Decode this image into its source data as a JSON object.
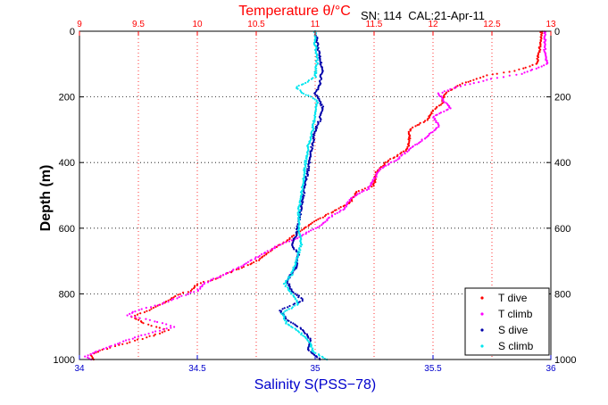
{
  "chart_data": {
    "type": "scatter",
    "title": "SN: 114  CAL:21-Apr-11",
    "top_axis_label": "Temperature θ/°C",
    "bottom_axis_label": "Salinity S(PSS−78)",
    "ylabel": "Depth (m)",
    "y_reversed": true,
    "ylim": [
      0,
      1000
    ],
    "y_ticks": [
      "0",
      "200",
      "400",
      "600",
      "800",
      "1000"
    ],
    "temperature_lim": [
      9,
      13
    ],
    "temperature_ticks": [
      "9",
      "9.5",
      "10",
      "10.5",
      "11",
      "11.5",
      "12",
      "12.5",
      "13"
    ],
    "salinity_lim": [
      34,
      36
    ],
    "salinity_ticks": [
      "34",
      "34.5",
      "35",
      "35.5",
      "36"
    ],
    "grid": true,
    "legend_position": "bottom-right",
    "colors": {
      "temperature_axis": "#ff0000",
      "salinity_axis": "#0000cc",
      "t_dive": "#ff0000",
      "t_climb": "#ff00ff",
      "s_dive": "#0000aa",
      "s_climb": "#00e5ee"
    },
    "series": [
      {
        "name": "T dive",
        "axis": "temperature",
        "marker": "dot",
        "points": [
          [
            12.92,
            0
          ],
          [
            12.92,
            30
          ],
          [
            12.9,
            60
          ],
          [
            12.88,
            100
          ],
          [
            12.7,
            120
          ],
          [
            12.45,
            135
          ],
          [
            12.25,
            160
          ],
          [
            12.1,
            190
          ],
          [
            12.08,
            220
          ],
          [
            12.0,
            240
          ],
          [
            11.95,
            270
          ],
          [
            11.8,
            300
          ],
          [
            11.8,
            340
          ],
          [
            11.78,
            360
          ],
          [
            11.6,
            400
          ],
          [
            11.52,
            430
          ],
          [
            11.5,
            470
          ],
          [
            11.35,
            490
          ],
          [
            11.3,
            520
          ],
          [
            11.2,
            540
          ],
          [
            11.1,
            560
          ],
          [
            10.95,
            590
          ],
          [
            10.85,
            615
          ],
          [
            10.75,
            640
          ],
          [
            10.65,
            660
          ],
          [
            10.55,
            690
          ],
          [
            10.45,
            710
          ],
          [
            10.3,
            730
          ],
          [
            10.15,
            755
          ],
          [
            10.0,
            770
          ],
          [
            9.95,
            790
          ],
          [
            9.85,
            800
          ],
          [
            9.75,
            820
          ],
          [
            9.6,
            850
          ],
          [
            9.45,
            870
          ],
          [
            9.55,
            890
          ],
          [
            9.75,
            910
          ],
          [
            9.6,
            930
          ],
          [
            9.4,
            950
          ],
          [
            9.2,
            970
          ],
          [
            9.1,
            985
          ],
          [
            9.12,
            1000
          ]
        ]
      },
      {
        "name": "T climb",
        "axis": "temperature",
        "marker": "dot",
        "points": [
          [
            12.95,
            0
          ],
          [
            12.95,
            30
          ],
          [
            12.95,
            60
          ],
          [
            12.97,
            100
          ],
          [
            12.75,
            130
          ],
          [
            12.5,
            145
          ],
          [
            12.2,
            170
          ],
          [
            12.05,
            190
          ],
          [
            12.1,
            215
          ],
          [
            12.15,
            235
          ],
          [
            12.0,
            260
          ],
          [
            12.05,
            290
          ],
          [
            11.95,
            320
          ],
          [
            11.8,
            360
          ],
          [
            11.7,
            390
          ],
          [
            11.55,
            420
          ],
          [
            11.5,
            450
          ],
          [
            11.45,
            480
          ],
          [
            11.3,
            510
          ],
          [
            11.25,
            540
          ],
          [
            11.15,
            560
          ],
          [
            11.05,
            590
          ],
          [
            10.95,
            610
          ],
          [
            10.85,
            630
          ],
          [
            10.7,
            650
          ],
          [
            10.6,
            670
          ],
          [
            10.45,
            700
          ],
          [
            10.35,
            720
          ],
          [
            10.2,
            745
          ],
          [
            10.05,
            770
          ],
          [
            10.0,
            790
          ],
          [
            9.85,
            810
          ],
          [
            9.7,
            830
          ],
          [
            9.5,
            850
          ],
          [
            9.4,
            865
          ],
          [
            9.6,
            880
          ],
          [
            9.8,
            900
          ],
          [
            9.65,
            915
          ],
          [
            9.5,
            930
          ],
          [
            9.3,
            955
          ],
          [
            9.15,
            975
          ],
          [
            9.05,
            990
          ],
          [
            9.1,
            1000
          ]
        ]
      },
      {
        "name": "S dive",
        "axis": "salinity",
        "marker": "dot",
        "points": [
          [
            35.0,
            0
          ],
          [
            35.01,
            40
          ],
          [
            35.02,
            80
          ],
          [
            35.03,
            120
          ],
          [
            35.02,
            160
          ],
          [
            35.0,
            190
          ],
          [
            35.03,
            230
          ],
          [
            35.02,
            270
          ],
          [
            35.0,
            300
          ],
          [
            34.99,
            340
          ],
          [
            34.98,
            380
          ],
          [
            34.97,
            420
          ],
          [
            34.96,
            460
          ],
          [
            34.95,
            500
          ],
          [
            34.94,
            540
          ],
          [
            34.93,
            580
          ],
          [
            34.92,
            620
          ],
          [
            34.9,
            650
          ],
          [
            34.93,
            680
          ],
          [
            34.92,
            720
          ],
          [
            34.88,
            760
          ],
          [
            34.9,
            790
          ],
          [
            34.95,
            820
          ],
          [
            34.85,
            850
          ],
          [
            34.88,
            880
          ],
          [
            34.95,
            910
          ],
          [
            34.98,
            940
          ],
          [
            34.97,
            970
          ],
          [
            35.02,
            1000
          ]
        ]
      },
      {
        "name": "S climb",
        "axis": "salinity",
        "marker": "dot",
        "points": [
          [
            35.0,
            0
          ],
          [
            35.0,
            40
          ],
          [
            35.01,
            80
          ],
          [
            35.0,
            140
          ],
          [
            34.95,
            160
          ],
          [
            34.92,
            170
          ],
          [
            34.95,
            190
          ],
          [
            35.01,
            210
          ],
          [
            35.0,
            250
          ],
          [
            34.99,
            300
          ],
          [
            34.97,
            350
          ],
          [
            34.96,
            400
          ],
          [
            34.95,
            450
          ],
          [
            34.94,
            500
          ],
          [
            34.93,
            550
          ],
          [
            34.93,
            600
          ],
          [
            34.94,
            650
          ],
          [
            34.92,
            700
          ],
          [
            34.9,
            740
          ],
          [
            34.87,
            770
          ],
          [
            34.9,
            800
          ],
          [
            34.93,
            830
          ],
          [
            34.86,
            860
          ],
          [
            34.88,
            890
          ],
          [
            34.94,
            920
          ],
          [
            34.98,
            950
          ],
          [
            34.99,
            975
          ],
          [
            35.05,
            1000
          ]
        ]
      }
    ]
  }
}
